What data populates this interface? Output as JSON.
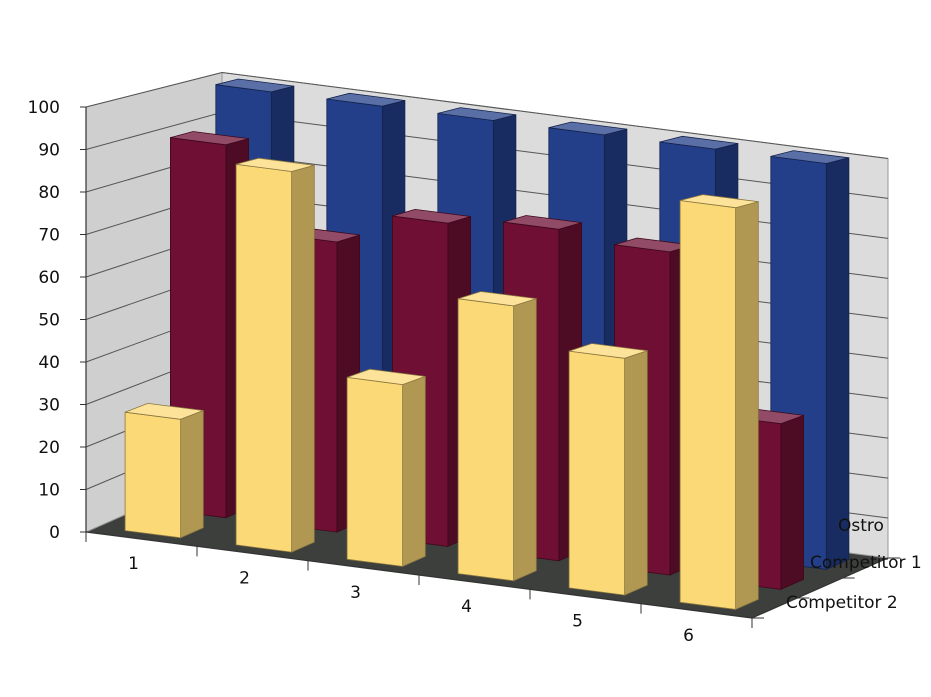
{
  "chart_data": {
    "type": "bar",
    "subtype": "3d-clustered-column",
    "categories": [
      "1",
      "2",
      "3",
      "4",
      "5",
      "6"
    ],
    "series": [
      {
        "name": "Ostro",
        "values": [
          100,
          100,
          100,
          100,
          100,
          100
        ],
        "color": "#243f8a"
      },
      {
        "name": "Competitor 1",
        "values": [
          90,
          70,
          78,
          80,
          78,
          40
        ],
        "color": "#6e0f33"
      },
      {
        "name": "Competitor 2",
        "values": [
          28,
          90,
          43,
          65,
          56,
          95
        ],
        "color": "#fbd977"
      }
    ],
    "y_ticks": [
      "0",
      "10",
      "20",
      "30",
      "40",
      "50",
      "60",
      "70",
      "80",
      "90",
      "100"
    ],
    "ylim": [
      0,
      100
    ],
    "grid": true,
    "legend": "depth-axis-right",
    "colors": {
      "wall": "#dcdcdc",
      "side_wall": "#cfcfcf",
      "floor": "#3c3f3c",
      "gridline": "#555555"
    }
  }
}
